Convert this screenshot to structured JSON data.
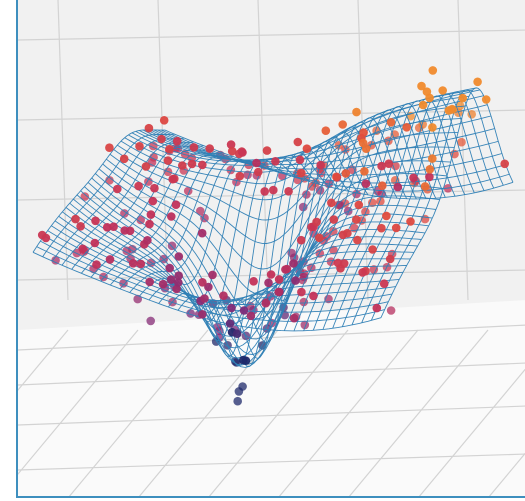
{
  "chart_data": {
    "type": "scatter",
    "projection": "3d-perspective",
    "title": "",
    "xlabel": "",
    "ylabel": "",
    "zlabel": "",
    "axes_visible": false,
    "grid": true,
    "background_panes": true,
    "legend": "none",
    "surface": {
      "style": "wireframe",
      "color": "#2f7fb5",
      "shape": "saddle-like ridge with a deep central trough",
      "x_range": [
        -3,
        3
      ],
      "y_range": [
        -3,
        3
      ],
      "z_range": [
        -2,
        2
      ]
    },
    "points": {
      "colormap": [
        "#1f2a6b",
        "#7b2a7a",
        "#c2305a",
        "#e14b3c",
        "#f08a2c"
      ],
      "color_by": "z",
      "z_range": [
        -2,
        2
      ],
      "approx_count": 300
    },
    "colors": {
      "pane_back": "#f1f1f1",
      "pane_floor": "#fafafa",
      "grid": "#d3d3d3",
      "frame": "#3e8fbe"
    }
  }
}
